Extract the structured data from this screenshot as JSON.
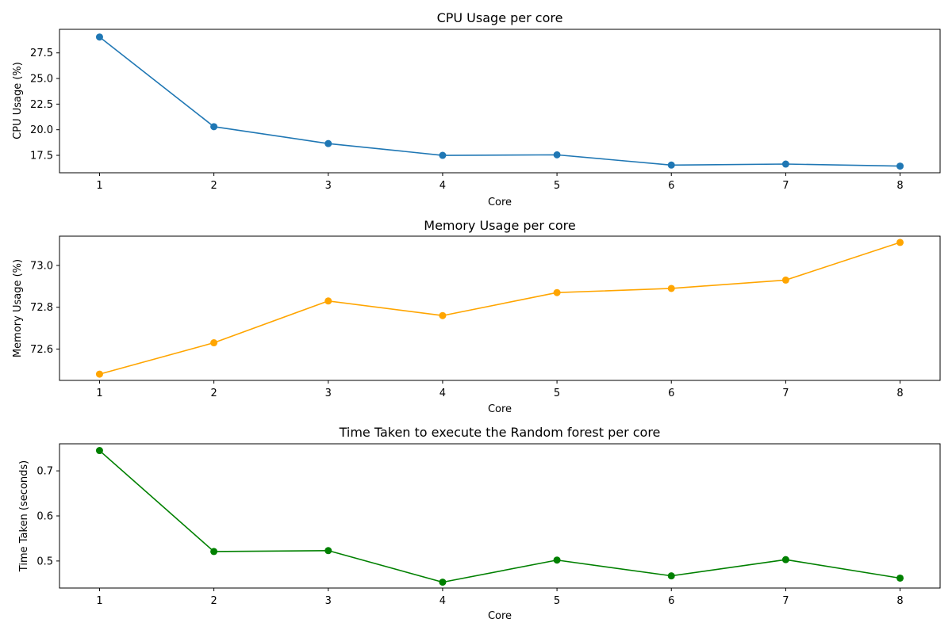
{
  "chart_data": [
    {
      "type": "line",
      "title": "CPU Usage per core",
      "xlabel": "Core",
      "ylabel": "CPU Usage (%)",
      "x": [
        1,
        2,
        3,
        4,
        5,
        6,
        7,
        8
      ],
      "xlim": [
        0.65,
        8.35
      ],
      "ylim": [
        15.8,
        29.8
      ],
      "xticks": [
        1,
        2,
        3,
        4,
        5,
        6,
        7,
        8
      ],
      "yticks": [
        17.5,
        20.0,
        22.5,
        25.0,
        27.5
      ],
      "ytick_labels": [
        "17.5",
        "20.0",
        "22.5",
        "25.0",
        "27.5"
      ],
      "grid": false,
      "series": [
        {
          "values": [
            29.05,
            20.3,
            18.65,
            17.5,
            17.55,
            16.55,
            16.65,
            16.45
          ],
          "color": "#1f77b4",
          "marker": "circle"
        }
      ]
    },
    {
      "type": "line",
      "title": "Memory Usage per core",
      "xlabel": "Core",
      "ylabel": "Memory Usage (%)",
      "x": [
        1,
        2,
        3,
        4,
        5,
        6,
        7,
        8
      ],
      "xlim": [
        0.65,
        8.35
      ],
      "ylim": [
        72.45,
        73.14
      ],
      "xticks": [
        1,
        2,
        3,
        4,
        5,
        6,
        7,
        8
      ],
      "yticks": [
        72.6,
        72.8,
        73.0
      ],
      "ytick_labels": [
        "72.6",
        "72.8",
        "73.0"
      ],
      "grid": false,
      "series": [
        {
          "values": [
            72.48,
            72.63,
            72.83,
            72.76,
            72.87,
            72.89,
            72.93,
            73.11
          ],
          "color": "#ffa500",
          "marker": "circle"
        }
      ]
    },
    {
      "type": "line",
      "title": "Time Taken to execute the Random forest per core",
      "xlabel": "Core",
      "ylabel": "Time Taken (seconds)",
      "x": [
        1,
        2,
        3,
        4,
        5,
        6,
        7,
        8
      ],
      "xlim": [
        0.65,
        8.35
      ],
      "ylim": [
        0.44,
        0.76
      ],
      "xticks": [
        1,
        2,
        3,
        4,
        5,
        6,
        7,
        8
      ],
      "yticks": [
        0.5,
        0.6,
        0.7
      ],
      "ytick_labels": [
        "0.5",
        "0.6",
        "0.7"
      ],
      "grid": false,
      "series": [
        {
          "values": [
            0.745,
            0.521,
            0.523,
            0.453,
            0.502,
            0.467,
            0.503,
            0.462
          ],
          "color": "#008000",
          "marker": "circle"
        }
      ]
    }
  ]
}
